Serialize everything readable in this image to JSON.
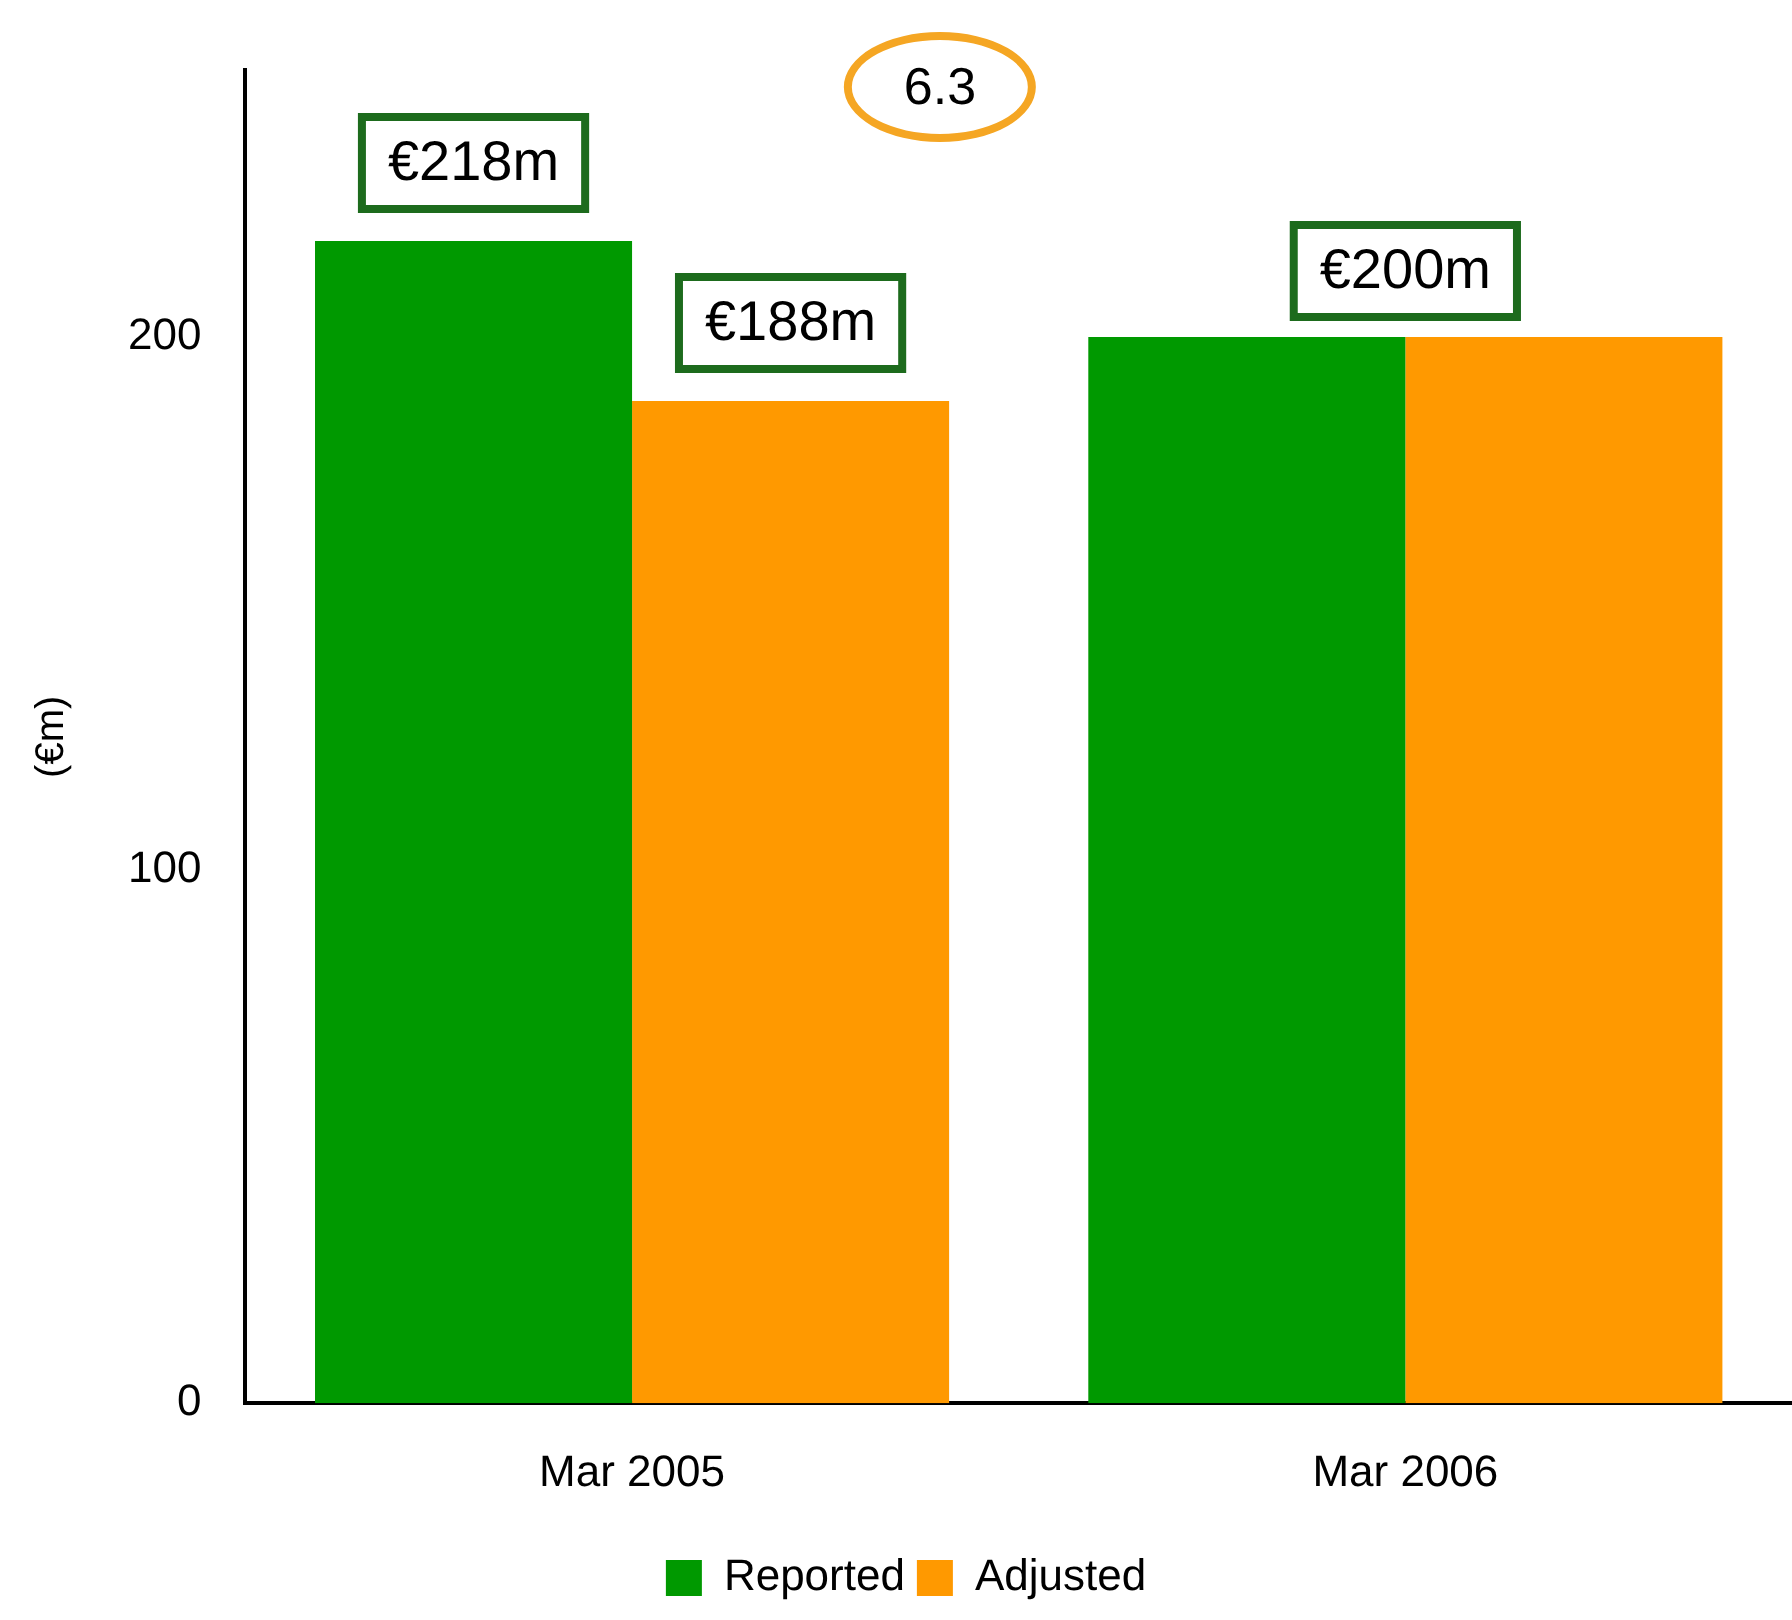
{
  "chart_data": {
    "type": "bar",
    "ylabel": "(€m)",
    "categories": [
      "Mar 2005",
      "Mar 2006"
    ],
    "series": [
      {
        "name": "Reported",
        "color": "#009900",
        "values": [
          218,
          200
        ],
        "value_labels": [
          "€218m",
          null
        ]
      },
      {
        "name": "Adjusted",
        "color": "#ff9900",
        "values": [
          188,
          200
        ],
        "value_labels": [
          "€188m",
          null
        ]
      }
    ],
    "ylim": [
      0,
      250
    ],
    "yticks": [
      0,
      100,
      200
    ],
    "grid": false,
    "legend": "bottom",
    "annotations": [
      {
        "text": "€200m",
        "x": "Mar 2006",
        "y": 200
      },
      "6.3"
    ]
  }
}
